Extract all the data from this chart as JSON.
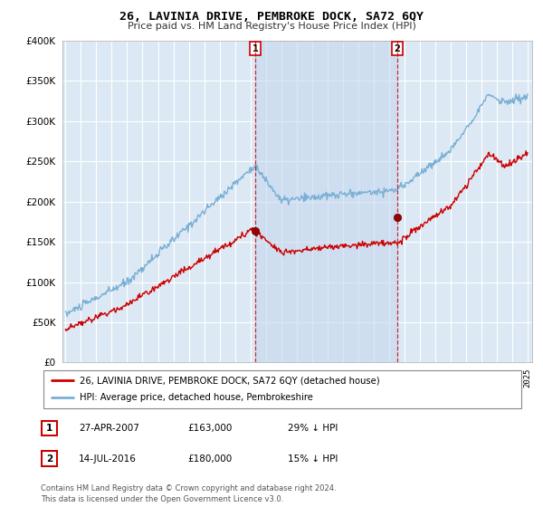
{
  "title": "26, LAVINIA DRIVE, PEMBROKE DOCK, SA72 6QY",
  "subtitle": "Price paid vs. HM Land Registry's House Price Index (HPI)",
  "legend_line1": "26, LAVINIA DRIVE, PEMBROKE DOCK, SA72 6QY (detached house)",
  "legend_line2": "HPI: Average price, detached house, Pembrokeshire",
  "annotation1_label": "1",
  "annotation1_date": "27-APR-2007",
  "annotation1_price": "£163,000",
  "annotation1_note": "29% ↓ HPI",
  "annotation2_label": "2",
  "annotation2_date": "14-JUL-2016",
  "annotation2_price": "£180,000",
  "annotation2_note": "15% ↓ HPI",
  "footnote": "Contains HM Land Registry data © Crown copyright and database right 2024.\nThis data is licensed under the Open Government Licence v3.0.",
  "ylim": [
    0,
    400000
  ],
  "yticks": [
    0,
    50000,
    100000,
    150000,
    200000,
    250000,
    300000,
    350000,
    400000
  ],
  "bg_color": "#dce9f5",
  "shade_color": "#c5d8ee",
  "grid_color": "#ffffff",
  "red_line_color": "#cc0000",
  "blue_line_color": "#7aafd4",
  "marker1_x": 2007.32,
  "marker1_y": 163000,
  "marker2_x": 2016.54,
  "marker2_y": 180000,
  "vline1_x": 2007.32,
  "vline2_x": 2016.54,
  "xmin": 1995,
  "xmax": 2025
}
